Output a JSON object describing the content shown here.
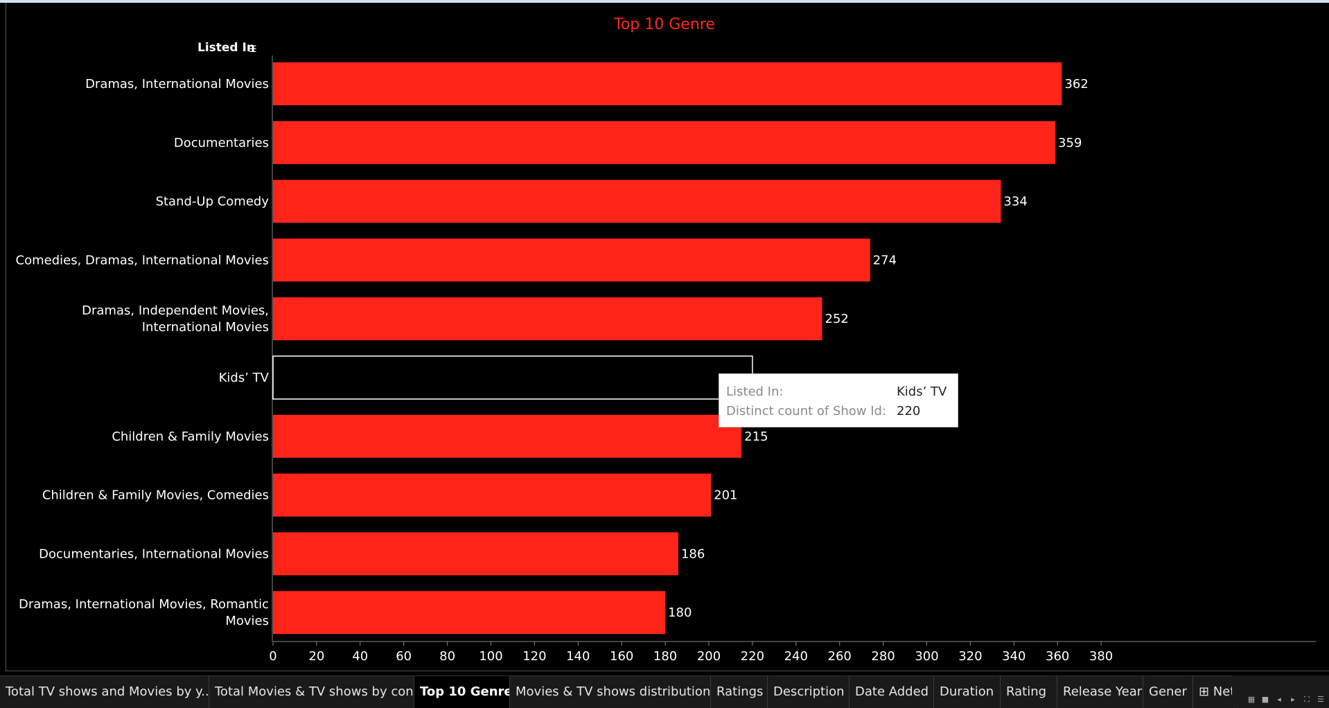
{
  "chart_data": {
    "type": "bar",
    "orientation": "horizontal",
    "title": "Top 10 Genre",
    "ylabel": "Listed In",
    "xlabel": "",
    "categories": [
      [
        "Dramas, International Movies"
      ],
      [
        "Documentaries"
      ],
      [
        "Stand-Up Comedy"
      ],
      [
        "Comedies, Dramas, International Movies"
      ],
      [
        "Dramas, Independent Movies,",
        "International Movies"
      ],
      [
        "Kids’ TV"
      ],
      [
        "Children & Family Movies"
      ],
      [
        "Children & Family Movies, Comedies"
      ],
      [
        "Documentaries, International Movies"
      ],
      [
        "Dramas, International Movies, Romantic",
        "Movies"
      ]
    ],
    "values": [
      362,
      359,
      334,
      274,
      252,
      220,
      215,
      201,
      186,
      180
    ],
    "xlim": [
      0,
      390
    ],
    "xticks": [
      0,
      20,
      40,
      60,
      80,
      100,
      120,
      140,
      160,
      180,
      200,
      220,
      240,
      260,
      280,
      300,
      320,
      340,
      360,
      380
    ],
    "bar_color": "#ff2419",
    "highlight_index": 5,
    "grid": false
  },
  "tooltip": {
    "k1": "Listed In:",
    "v1": "Kids’ TV",
    "k2": "Distinct count of Show Id:",
    "v2": "220"
  },
  "tabs": [
    {
      "label": "Total TV shows and Movies by y...",
      "active": false
    },
    {
      "label": "Total Movies & TV shows by con...",
      "active": false
    },
    {
      "label": "Top 10 Genre",
      "active": true
    },
    {
      "label": "Movies & TV shows distribution",
      "active": false
    },
    {
      "label": "Ratings",
      "active": false
    },
    {
      "label": "Description",
      "active": false
    },
    {
      "label": "Date Added",
      "active": false
    },
    {
      "label": "Duration",
      "active": false
    },
    {
      "label": "Rating",
      "active": false
    },
    {
      "label": "Release Year",
      "active": false
    },
    {
      "label": "Gener",
      "active": false
    },
    {
      "label": "⊞ Net",
      "active": false
    }
  ]
}
